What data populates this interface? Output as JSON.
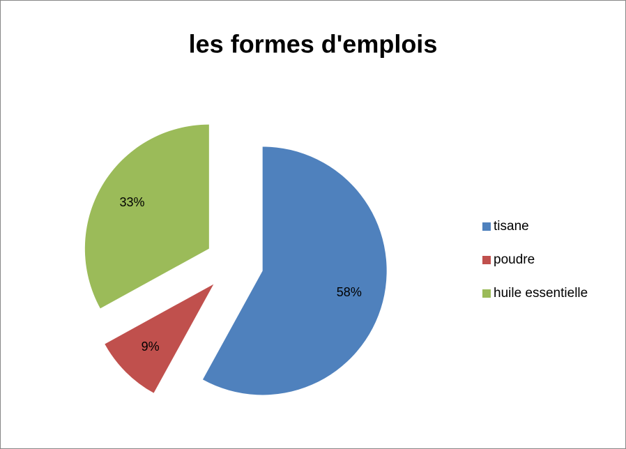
{
  "chart_data": {
    "type": "pie",
    "title": "les formes d'emplois",
    "categories": [
      "tisane",
      "poudre",
      "huile essentielle"
    ],
    "values": [
      58,
      9,
      33
    ],
    "value_labels": [
      "58%",
      "9%",
      "33%"
    ],
    "colors": [
      "#4f81bd",
      "#c0504d",
      "#9bbb59"
    ],
    "exploded": true,
    "legend": "right"
  }
}
